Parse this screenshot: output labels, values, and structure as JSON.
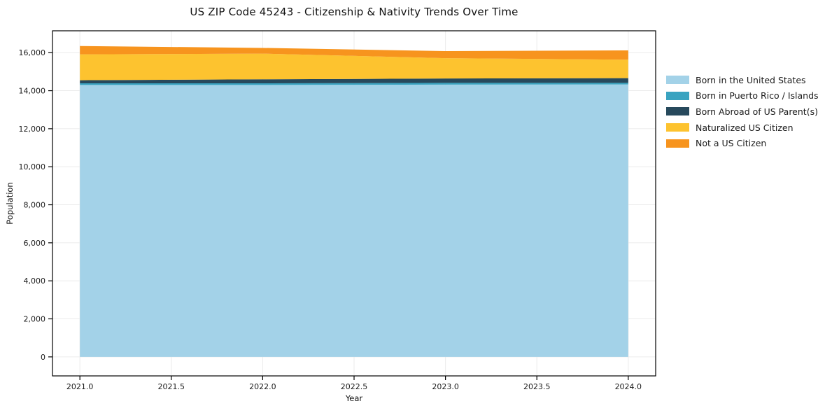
{
  "chart_data": {
    "type": "area",
    "stacked": true,
    "title": "US ZIP Code 45243 - Citizenship & Nativity Trends Over Time",
    "xlabel": "Year",
    "ylabel": "Population",
    "x": [
      2021,
      2022,
      2023,
      2024
    ],
    "series": [
      {
        "name": "Born in the United States",
        "color": "#a3d2e8",
        "values": [
          14300,
          14300,
          14320,
          14330
        ]
      },
      {
        "name": "Born in Puerto Rico / Islands",
        "color": "#39a3c0",
        "values": [
          90,
          90,
          90,
          80
        ]
      },
      {
        "name": "Born Abroad of US Parent(s)",
        "color": "#27495c",
        "values": [
          160,
          210,
          230,
          250
        ]
      },
      {
        "name": "Naturalized US Citizen",
        "color": "#fdc32f",
        "values": [
          1360,
          1350,
          1070,
          970
        ]
      },
      {
        "name": "Not a US Citizen",
        "color": "#f7941e",
        "values": [
          440,
          300,
          370,
          490
        ]
      }
    ],
    "x_ticks": {
      "values": [
        2021.0,
        2021.5,
        2022.0,
        2022.5,
        2023.0,
        2023.5,
        2024.0
      ],
      "labels": [
        "2021.0",
        "2021.5",
        "2022.0",
        "2022.5",
        "2023.0",
        "2023.5",
        "2024.0"
      ]
    },
    "y_ticks": {
      "values": [
        0,
        2000,
        4000,
        6000,
        8000,
        10000,
        12000,
        14000,
        16000
      ],
      "labels": [
        "0",
        "2,000",
        "4,000",
        "6,000",
        "8,000",
        "10,000",
        "12,000",
        "14,000",
        "16,000"
      ]
    },
    "xlim": [
      2020.85,
      2024.15
    ],
    "ylim": [
      -1000,
      17150
    ],
    "grid": true,
    "legend_position": "right",
    "colors": {
      "grid": "#ebebeb",
      "spine": "#000000",
      "tick_label": "#1a1a1a",
      "background": "#ffffff"
    }
  }
}
